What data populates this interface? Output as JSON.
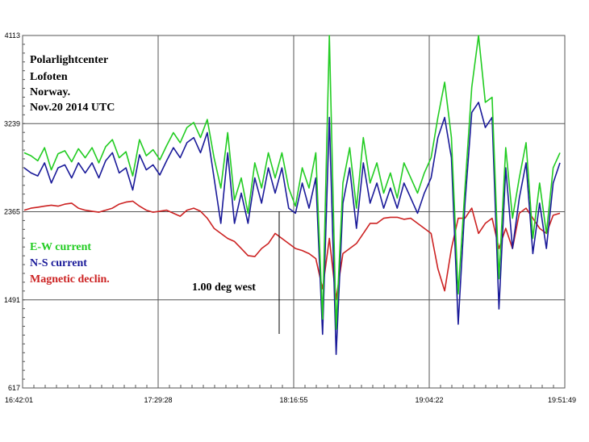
{
  "chart_data": {
    "type": "line",
    "annotation_lines": [
      "Polarlightcenter",
      "Lofoten",
      "Norway.",
      "Nov.20 2014   UTC"
    ],
    "x_ticks": [
      "16:42:01",
      "17:29:28",
      "18:16:55",
      "19:04:22",
      "19:51:49"
    ],
    "y_ticks": [
      617,
      1491,
      2365,
      3239,
      4113
    ],
    "ylim": [
      617,
      4113
    ],
    "grid": true,
    "legend_position": "middle-left",
    "marker_label": "1.00 deg west",
    "colors": {
      "ew": "#22cc22",
      "ns": "#1a1a99",
      "decl": "#cc2222"
    },
    "series": [
      {
        "name": "E-W current",
        "color": "#22cc22",
        "values": [
          2950,
          2920,
          2870,
          3000,
          2780,
          2940,
          2970,
          2860,
          2990,
          2900,
          3000,
          2850,
          3010,
          3080,
          2900,
          2960,
          2720,
          3080,
          2920,
          2980,
          2880,
          3020,
          3150,
          3050,
          3200,
          3250,
          3100,
          3280,
          2900,
          2600,
          3150,
          2480,
          2700,
          2350,
          2850,
          2600,
          2950,
          2700,
          2950,
          2600,
          2420,
          2800,
          2600,
          2950,
          1300,
          4113,
          1200,
          2650,
          3000,
          2400,
          3100,
          2650,
          2850,
          2550,
          2750,
          2500,
          2850,
          2700,
          2550,
          2750,
          2900,
          3300,
          3650,
          3100,
          1550,
          2600,
          3600,
          4113,
          3450,
          3500,
          1700,
          3000,
          2300,
          2700,
          3050,
          2100,
          2650,
          2150,
          2800,
          2950
        ]
      },
      {
        "name": "N-S current",
        "color": "#1a1a99",
        "values": [
          2800,
          2750,
          2720,
          2850,
          2650,
          2800,
          2830,
          2700,
          2850,
          2750,
          2850,
          2700,
          2870,
          2950,
          2750,
          2800,
          2580,
          2930,
          2780,
          2830,
          2730,
          2870,
          3000,
          2900,
          3050,
          3100,
          2950,
          3150,
          2700,
          2250,
          2950,
          2250,
          2550,
          2250,
          2700,
          2450,
          2800,
          2550,
          2800,
          2400,
          2350,
          2650,
          2400,
          2700,
          1150,
          3300,
          950,
          2450,
          2800,
          2200,
          2850,
          2450,
          2650,
          2400,
          2600,
          2400,
          2650,
          2500,
          2350,
          2550,
          2700,
          3100,
          3300,
          2900,
          1250,
          2450,
          3350,
          3450,
          3200,
          3300,
          1400,
          2800,
          2000,
          2500,
          2850,
          1950,
          2450,
          2000,
          2650,
          2850
        ]
      },
      {
        "name": "Magnetic declin.",
        "color": "#cc2222",
        "values": [
          2380,
          2400,
          2410,
          2420,
          2430,
          2420,
          2440,
          2450,
          2400,
          2380,
          2370,
          2360,
          2380,
          2400,
          2440,
          2460,
          2470,
          2420,
          2380,
          2360,
          2370,
          2380,
          2350,
          2320,
          2380,
          2400,
          2370,
          2300,
          2200,
          2150,
          2100,
          2070,
          2000,
          1930,
          1920,
          2000,
          2050,
          2150,
          2100,
          2050,
          2000,
          1980,
          1950,
          1900,
          1600,
          2100,
          1500,
          1950,
          2000,
          2050,
          2150,
          2250,
          2250,
          2300,
          2310,
          2310,
          2290,
          2300,
          2250,
          2200,
          2150,
          1800,
          1580,
          2000,
          2300,
          2300,
          2400,
          2150,
          2250,
          2300,
          2000,
          2200,
          2000,
          2350,
          2400,
          2300,
          2200,
          2150,
          2330,
          2350
        ]
      }
    ]
  }
}
